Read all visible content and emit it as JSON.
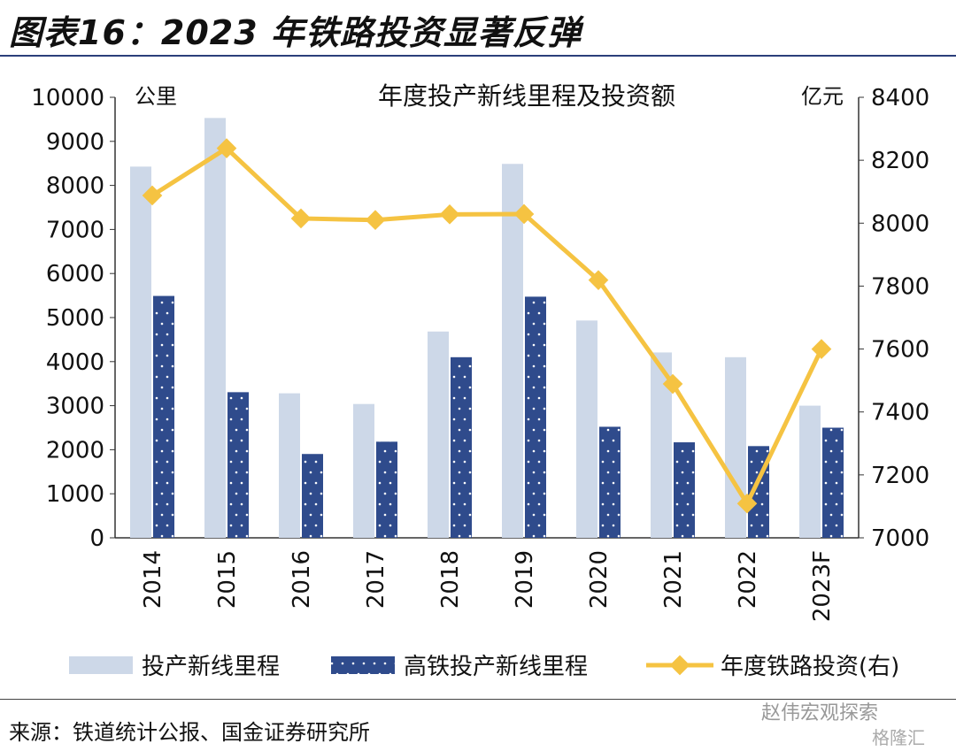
{
  "title": "图表16：2023 年铁路投资显著反弹",
  "source": "来源：铁道统计公报、国金证券研究所",
  "watermark": {
    "text1": "赵伟宏观探索",
    "text2": "格隆汇"
  },
  "chart_data": {
    "type": "bar+line",
    "title": "年度投产新线里程及投资额",
    "ylabel_left": "公里",
    "ylabel_right": "亿元",
    "categories": [
      "2014",
      "2015",
      "2016",
      "2017",
      "2018",
      "2019",
      "2020",
      "2021",
      "2022",
      "2023F"
    ],
    "ylim_left": [
      0,
      10000
    ],
    "yticks_left": [
      0,
      1000,
      2000,
      3000,
      4000,
      5000,
      6000,
      7000,
      8000,
      9000,
      10000
    ],
    "ylim_right": [
      7000,
      8400
    ],
    "yticks_right": [
      7000,
      7200,
      7400,
      7600,
      7800,
      8000,
      8200,
      8400
    ],
    "series": [
      {
        "name": "投产新线里程",
        "type": "bar",
        "axis": "left",
        "color": "#cdd8e8",
        "values": [
          8427,
          9531,
          3281,
          3038,
          4683,
          8489,
          4933,
          4208,
          4100,
          3000
        ]
      },
      {
        "name": "高铁投产新线里程",
        "type": "bar",
        "axis": "left",
        "color": "#2f4b8c",
        "values": [
          5491,
          3306,
          1903,
          2182,
          4100,
          5474,
          2521,
          2168,
          2082,
          2500
        ]
      },
      {
        "name": "年度铁路投资(右)",
        "type": "line",
        "axis": "right",
        "color": "#f5c342",
        "values": [
          8088,
          8238,
          8015,
          8010,
          8028,
          8029,
          7819,
          7489,
          7109,
          7600
        ]
      }
    ],
    "legend": "bottom"
  }
}
